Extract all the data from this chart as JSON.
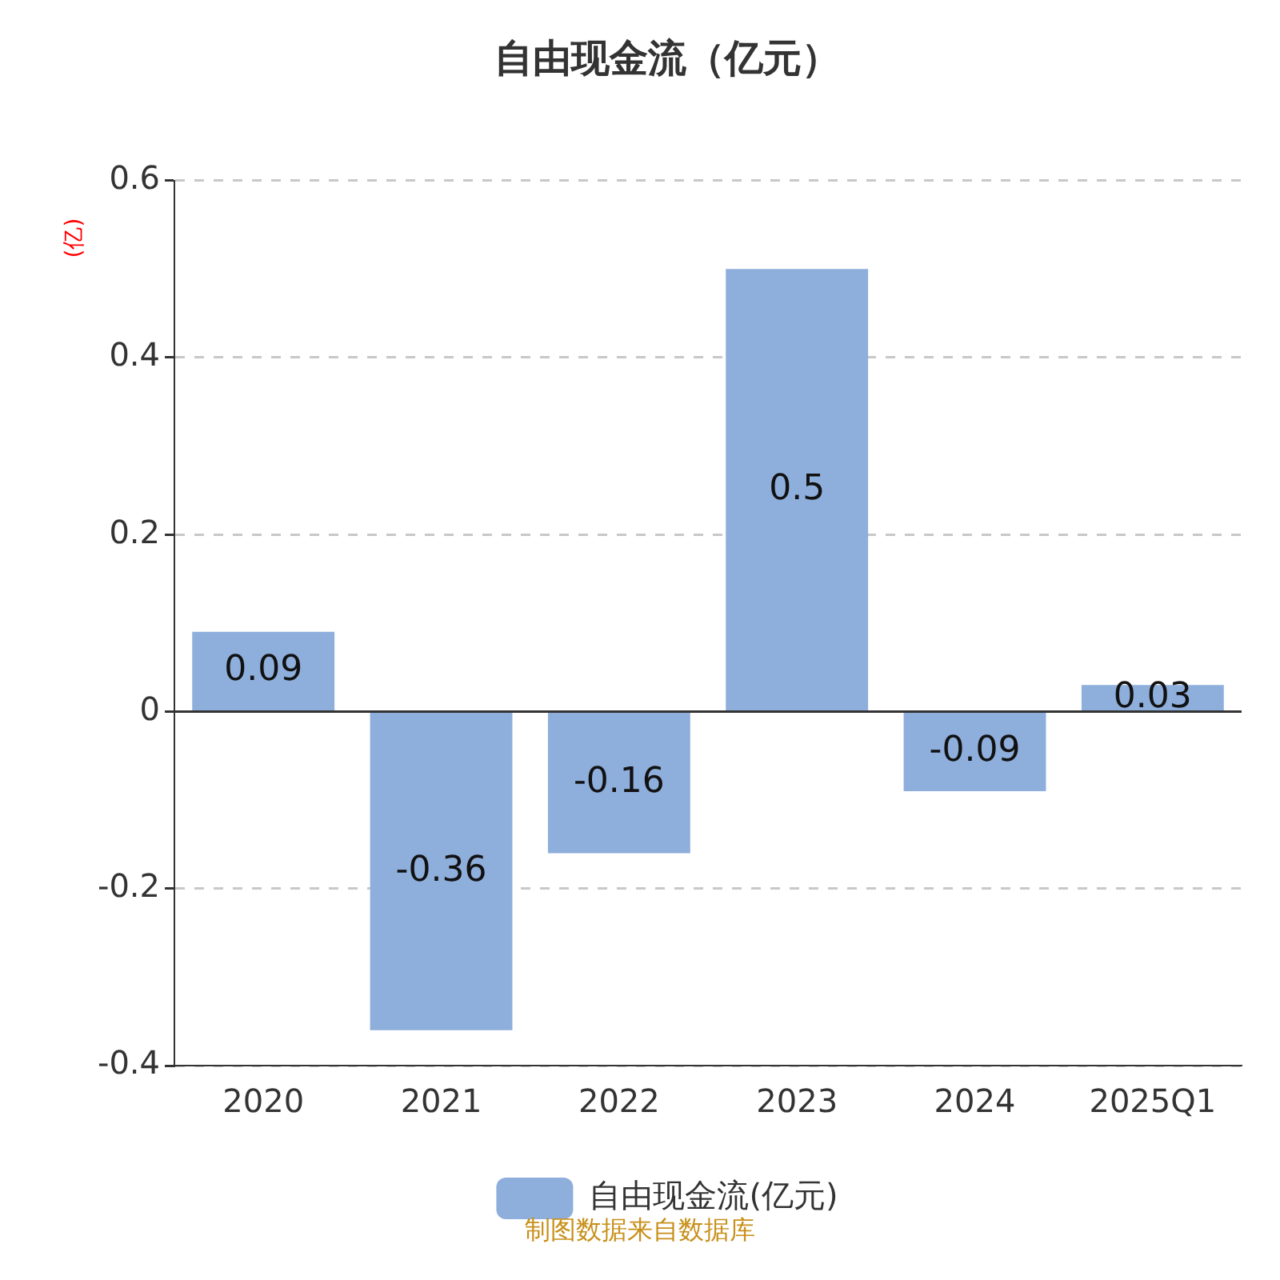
{
  "chart_data": {
    "type": "bar",
    "title": "自由现金流（亿元）",
    "ylabel": "(亿)",
    "categories": [
      "2020",
      "2021",
      "2022",
      "2023",
      "2024",
      "2025Q1"
    ],
    "series": [
      {
        "name": "自由现金流(亿元)",
        "color": "#8eaedb",
        "values": [
          0.09,
          -0.36,
          -0.16,
          0.5,
          -0.09,
          0.03
        ]
      }
    ],
    "ylim": [
      -0.4,
      0.6
    ],
    "yticks": [
      -0.4,
      -0.2,
      0,
      0.2,
      0.4,
      0.6
    ],
    "grid": "y",
    "legend": "bottom",
    "data_labels": true,
    "annotations": [
      "制图数据来自数据库"
    ]
  }
}
